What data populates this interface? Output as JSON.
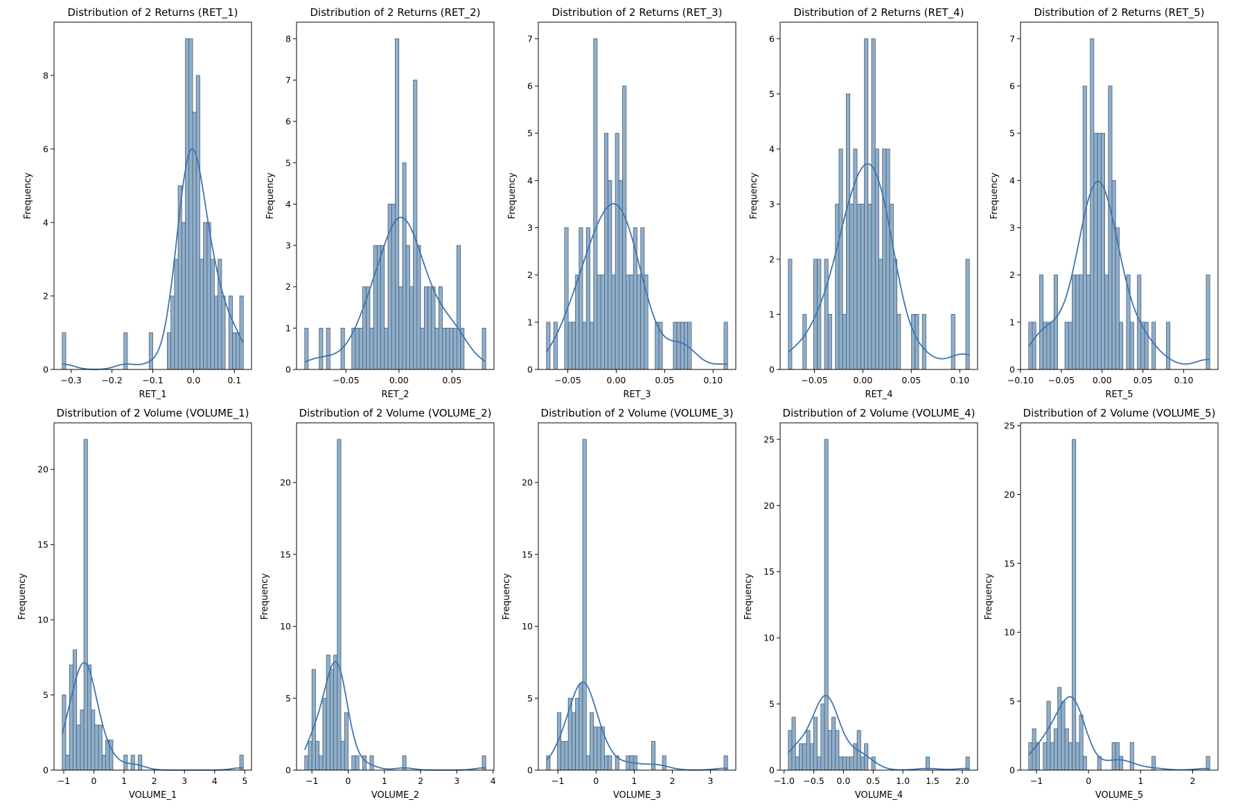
{
  "colors": {
    "bar_fill": "#8eafcc",
    "bar_edge": "#4d5c6b",
    "kde_line": "#3b75af"
  },
  "chart_data": [
    {
      "type": "bar",
      "title": "Distribution of 2 Returns (RET_1)",
      "xlabel": "RET_1",
      "ylabel": "Frequency",
      "bin_range": [
        -0.322,
        0.122
      ],
      "bins": 50,
      "counts": {
        "0": 1,
        "17": 1,
        "24": 1,
        "29": 1,
        "30": 2,
        "31": 3,
        "32": 5,
        "33": 4,
        "34": 9,
        "35": 9,
        "36": 7,
        "37": 8,
        "38": 3,
        "39": 4,
        "40": 4,
        "41": 3,
        "42": 2,
        "43": 3,
        "44": 2,
        "46": 2,
        "47": 1,
        "48": 1,
        "49": 2
      },
      "xticks": [
        "−0.3",
        "−0.2",
        "−0.1",
        "0.0",
        "0.1"
      ],
      "xtick_values": [
        -0.3,
        -0.2,
        -0.1,
        0,
        0.1
      ],
      "yticks": [
        "0",
        "2",
        "4",
        "6",
        "8"
      ],
      "ytick_values": [
        0,
        2,
        4,
        6,
        8
      ],
      "ylim": [
        0,
        9.45
      ],
      "kde": true
    },
    {
      "type": "bar",
      "title": "Distribution of 2 Returns (RET_2)",
      "xlabel": "RET_2",
      "ylabel": "Frequency",
      "bin_range": [
        -0.089,
        0.082
      ],
      "bins": 50,
      "counts": {
        "0": 1,
        "4": 1,
        "6": 1,
        "10": 1,
        "13": 1,
        "14": 1,
        "15": 1,
        "16": 2,
        "17": 2,
        "18": 1,
        "19": 3,
        "20": 3,
        "21": 3,
        "22": 1,
        "23": 4,
        "24": 4,
        "25": 8,
        "26": 2,
        "27": 5,
        "28": 3,
        "29": 2,
        "30": 7,
        "31": 3,
        "32": 1,
        "33": 2,
        "34": 2,
        "35": 2,
        "36": 1,
        "37": 2,
        "38": 1,
        "39": 1,
        "40": 1,
        "41": 1,
        "42": 3,
        "43": 1,
        "49": 1
      },
      "xticks": [
        "−0.05",
        "0.00",
        "0.05"
      ],
      "xtick_values": [
        -0.05,
        0,
        0.05
      ],
      "yticks": [
        "0",
        "1",
        "2",
        "3",
        "4",
        "5",
        "6",
        "7",
        "8"
      ],
      "ytick_values": [
        0,
        1,
        2,
        3,
        4,
        5,
        6,
        7,
        8
      ],
      "ylim": [
        0,
        8.4
      ],
      "kde": true
    },
    {
      "type": "bar",
      "title": "Distribution of 2 Returns (RET_3)",
      "xlabel": "RET_3",
      "ylabel": "Frequency",
      "bin_range": [
        -0.072,
        0.115
      ],
      "bins": 50,
      "counts": {
        "0": 1,
        "2": 1,
        "5": 3,
        "6": 1,
        "7": 1,
        "8": 2,
        "9": 3,
        "10": 1,
        "11": 3,
        "12": 1,
        "13": 7,
        "14": 2,
        "15": 2,
        "16": 5,
        "17": 4,
        "18": 2,
        "19": 5,
        "20": 4,
        "21": 6,
        "22": 2,
        "23": 2,
        "24": 3,
        "25": 2,
        "26": 3,
        "27": 2,
        "30": 1,
        "31": 1,
        "35": 1,
        "36": 1,
        "37": 1,
        "38": 1,
        "39": 1,
        "49": 1
      },
      "xticks": [
        "−0.05",
        "0.00",
        "0.05",
        "0.10"
      ],
      "xtick_values": [
        -0.05,
        0,
        0.05,
        0.1
      ],
      "yticks": [
        "0",
        "1",
        "2",
        "3",
        "4",
        "5",
        "6",
        "7"
      ],
      "ytick_values": [
        0,
        1,
        2,
        3,
        4,
        5,
        6,
        7
      ],
      "ylim": [
        0,
        7.35
      ],
      "kde": true
    },
    {
      "type": "bar",
      "title": "Distribution of 2 Returns (RET_4)",
      "xlabel": "RET_4",
      "ylabel": "Frequency",
      "bin_range": [
        -0.077,
        0.11
      ],
      "bins": 50,
      "counts": {
        "0": 2,
        "4": 1,
        "7": 2,
        "8": 2,
        "10": 2,
        "11": 1,
        "13": 3,
        "14": 4,
        "15": 1,
        "16": 5,
        "17": 3,
        "18": 4,
        "19": 3,
        "20": 3,
        "21": 6,
        "22": 3,
        "23": 6,
        "24": 4,
        "25": 2,
        "26": 4,
        "27": 4,
        "28": 3,
        "29": 2,
        "30": 1,
        "34": 1,
        "35": 1,
        "37": 1,
        "45": 1,
        "49": 2
      },
      "xticks": [
        "−0.05",
        "0.00",
        "0.05",
        "0.10"
      ],
      "xtick_values": [
        -0.05,
        0,
        0.05,
        0.1
      ],
      "yticks": [
        "0",
        "1",
        "2",
        "3",
        "4",
        "5",
        "6"
      ],
      "ytick_values": [
        0,
        1,
        2,
        3,
        4,
        5,
        6
      ],
      "ylim": [
        0,
        6.3
      ],
      "kde": true
    },
    {
      "type": "bar",
      "title": "Distribution of 2 Returns (RET_5)",
      "xlabel": "RET_5",
      "ylabel": "Frequency",
      "bin_range": [
        -0.09,
        0.132
      ],
      "bins": 50,
      "counts": {
        "0": 1,
        "1": 1,
        "3": 2,
        "4": 1,
        "5": 1,
        "6": 1,
        "7": 2,
        "10": 1,
        "11": 1,
        "12": 2,
        "13": 2,
        "14": 2,
        "15": 6,
        "16": 2,
        "17": 7,
        "18": 5,
        "19": 5,
        "20": 5,
        "21": 2,
        "22": 6,
        "23": 4,
        "24": 3,
        "25": 1,
        "27": 2,
        "28": 1,
        "30": 2,
        "31": 1,
        "32": 1,
        "34": 1,
        "38": 1,
        "49": 2
      },
      "xticks": [
        "−0.10",
        "−0.05",
        "0.00",
        "0.05",
        "0.10"
      ],
      "xtick_values": [
        -0.1,
        -0.05,
        0,
        0.05,
        0.1
      ],
      "yticks": [
        "0",
        "1",
        "2",
        "3",
        "4",
        "5",
        "6",
        "7"
      ],
      "ytick_values": [
        0,
        1,
        2,
        3,
        4,
        5,
        6,
        7
      ],
      "ylim": [
        0,
        7.35
      ],
      "kde": true
    },
    {
      "type": "bar",
      "title": "Distribution of 2 Volume (VOLUME_1)",
      "xlabel": "VOLUME_1",
      "ylabel": "Frequency",
      "bin_range": [
        -1.05,
        4.95
      ],
      "bins": 50,
      "counts": {
        "0": 5,
        "1": 1,
        "2": 7,
        "3": 8,
        "4": 3,
        "5": 4,
        "6": 22,
        "7": 7,
        "8": 4,
        "9": 3,
        "10": 3,
        "11": 1,
        "12": 2,
        "13": 2,
        "17": 1,
        "19": 1,
        "21": 1,
        "49": 1
      },
      "xticks": [
        "−1",
        "0",
        "1",
        "2",
        "3",
        "4",
        "5"
      ],
      "xtick_values": [
        -1,
        0,
        1,
        2,
        3,
        4,
        5
      ],
      "yticks": [
        "0",
        "5",
        "10",
        "15",
        "20"
      ],
      "ytick_values": [
        0,
        5,
        10,
        15,
        20
      ],
      "ylim": [
        0,
        23.1
      ],
      "kde": true
    },
    {
      "type": "bar",
      "title": "Distribution of 2 Volume (VOLUME_2)",
      "xlabel": "VOLUME_2",
      "ylabel": "Frequency",
      "bin_range": [
        -1.2,
        3.8
      ],
      "bins": 50,
      "counts": {
        "0": 1,
        "1": 2,
        "2": 7,
        "3": 2,
        "4": 1,
        "5": 5,
        "6": 8,
        "7": 7,
        "8": 8,
        "9": 23,
        "10": 2,
        "11": 4,
        "13": 1,
        "14": 1,
        "16": 1,
        "18": 1,
        "27": 1,
        "49": 1
      },
      "xticks": [
        "−1",
        "0",
        "1",
        "2",
        "3",
        "4"
      ],
      "xtick_values": [
        -1,
        0,
        1,
        2,
        3,
        4
      ],
      "yticks": [
        "0",
        "5",
        "10",
        "15",
        "20"
      ],
      "ytick_values": [
        0,
        5,
        10,
        15,
        20
      ],
      "ylim": [
        0,
        24.15
      ],
      "kde": true
    },
    {
      "type": "bar",
      "title": "Distribution of 2 Volume (VOLUME_3)",
      "xlabel": "VOLUME_3",
      "ylabel": "Frequency",
      "bin_range": [
        -1.3,
        3.45
      ],
      "bins": 50,
      "counts": {
        "0": 1,
        "3": 4,
        "4": 2,
        "5": 2,
        "6": 5,
        "7": 4,
        "8": 5,
        "9": 6,
        "10": 23,
        "11": 1,
        "12": 4,
        "13": 3,
        "14": 3,
        "15": 3,
        "16": 1,
        "17": 1,
        "19": 1,
        "22": 1,
        "23": 1,
        "24": 1,
        "29": 2,
        "32": 1,
        "49": 1
      },
      "xticks": [
        "−1",
        "0",
        "1",
        "2",
        "3"
      ],
      "xtick_values": [
        -1,
        0,
        1,
        2,
        3
      ],
      "yticks": [
        "0",
        "5",
        "10",
        "15",
        "20"
      ],
      "ytick_values": [
        0,
        5,
        10,
        15,
        20
      ],
      "ylim": [
        0,
        24.15
      ],
      "kde": true
    },
    {
      "type": "bar",
      "title": "Distribution of 2 Volume (VOLUME_4)",
      "xlabel": "VOLUME_4",
      "ylabel": "Frequency",
      "bin_range": [
        -0.93,
        2.12
      ],
      "bins": 50,
      "counts": {
        "0": 3,
        "1": 4,
        "2": 1,
        "3": 2,
        "4": 2,
        "5": 3,
        "6": 2,
        "7": 4,
        "8": 1,
        "9": 5,
        "10": 25,
        "11": 3,
        "12": 4,
        "13": 3,
        "14": 1,
        "15": 1,
        "16": 1,
        "17": 1,
        "18": 2,
        "19": 3,
        "20": 1,
        "21": 2,
        "23": 1,
        "38": 1,
        "49": 1
      },
      "xticks": [
        "−1.0",
        "−0.5",
        "0.0",
        "0.5",
        "1.0",
        "1.5",
        "2.0"
      ],
      "xtick_values": [
        -1,
        -0.5,
        0,
        0.5,
        1,
        1.5,
        2
      ],
      "yticks": [
        "0",
        "5",
        "10",
        "15",
        "20",
        "25"
      ],
      "ytick_values": [
        0,
        5,
        10,
        15,
        20,
        25
      ],
      "ylim": [
        0,
        26.25
      ],
      "kde": true
    },
    {
      "type": "bar",
      "title": "Distribution of 2 Volume (VOLUME_5)",
      "xlabel": "VOLUME_5",
      "ylabel": "Frequency",
      "bin_range": [
        -1.15,
        2.33
      ],
      "bins": 50,
      "counts": {
        "0": 2,
        "1": 3,
        "2": 2,
        "4": 2,
        "5": 5,
        "6": 2,
        "7": 3,
        "8": 6,
        "9": 5,
        "10": 3,
        "11": 2,
        "12": 24,
        "13": 2,
        "14": 4,
        "15": 1,
        "19": 1,
        "23": 2,
        "24": 2,
        "25": 1,
        "28": 2,
        "34": 1,
        "49": 1
      },
      "xticks": [
        "−1",
        "0",
        "1",
        "2"
      ],
      "xtick_values": [
        -1,
        0,
        1,
        2
      ],
      "yticks": [
        "0",
        "5",
        "10",
        "15",
        "20",
        "25"
      ],
      "ytick_values": [
        0,
        5,
        10,
        15,
        20,
        25
      ],
      "ylim": [
        0,
        25.2
      ],
      "kde": true
    }
  ]
}
